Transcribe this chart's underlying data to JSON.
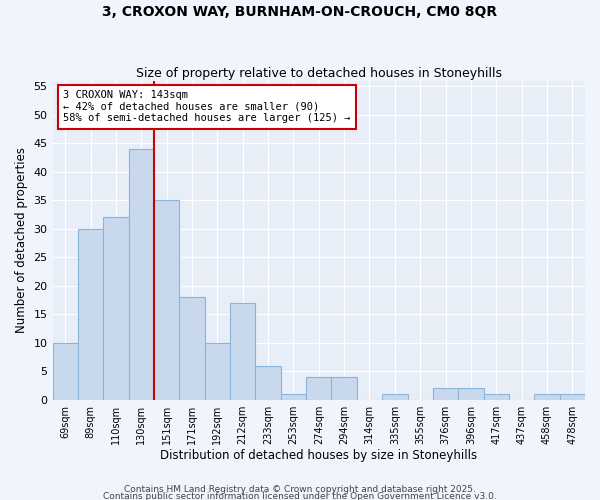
{
  "title": "3, CROXON WAY, BURNHAM-ON-CROUCH, CM0 8QR",
  "subtitle": "Size of property relative to detached houses in Stoneyhills",
  "xlabel": "Distribution of detached houses by size in Stoneyhills",
  "ylabel": "Number of detached properties",
  "categories": [
    "69sqm",
    "89sqm",
    "110sqm",
    "130sqm",
    "151sqm",
    "171sqm",
    "192sqm",
    "212sqm",
    "233sqm",
    "253sqm",
    "274sqm",
    "294sqm",
    "314sqm",
    "335sqm",
    "355sqm",
    "376sqm",
    "396sqm",
    "417sqm",
    "437sqm",
    "458sqm",
    "478sqm"
  ],
  "values": [
    10,
    30,
    32,
    44,
    35,
    18,
    10,
    17,
    6,
    1,
    4,
    4,
    0,
    1,
    0,
    2,
    2,
    1,
    0,
    1,
    1
  ],
  "bar_color": "#c8d9ee",
  "bar_edge_color": "#8ab4d8",
  "vline_x_index": 3.5,
  "vline_color": "#cc0000",
  "annotation_text": "3 CROXON WAY: 143sqm\n← 42% of detached houses are smaller (90)\n58% of semi-detached houses are larger (125) →",
  "annotation_box_facecolor": "white",
  "annotation_box_edgecolor": "#cc0000",
  "ylim": [
    0,
    56
  ],
  "yticks": [
    0,
    5,
    10,
    15,
    20,
    25,
    30,
    35,
    40,
    45,
    50,
    55
  ],
  "fig_facecolor": "#f0f4fc",
  "ax_facecolor": "#e8eef8",
  "grid_color": "white",
  "footer_text1": "Contains HM Land Registry data © Crown copyright and database right 2025.",
  "footer_text2": "Contains public sector information licensed under the Open Government Licence v3.0."
}
